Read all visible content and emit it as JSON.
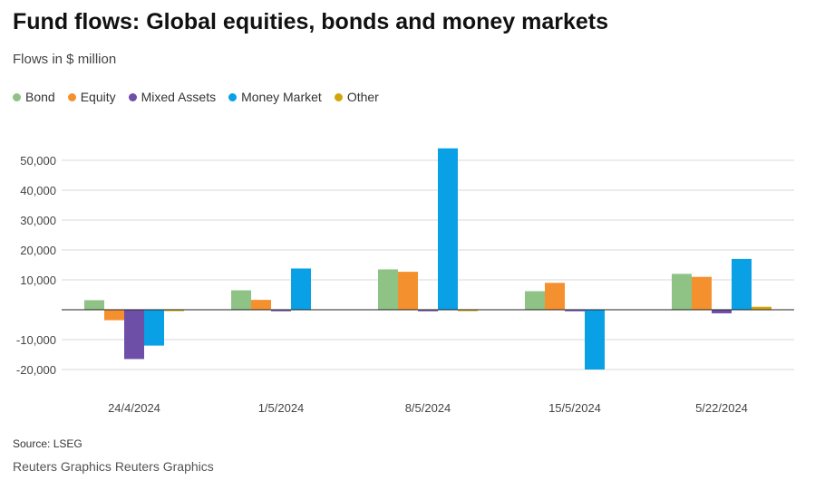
{
  "header": {
    "title": "Fund flows: Global equities, bonds and money markets",
    "subtitle": "Flows in $ million"
  },
  "footer": {
    "source": "Source: LSEG",
    "credit": "Reuters Graphics Reuters Graphics"
  },
  "chart_data": {
    "type": "bar",
    "title": "Fund flows: Global equities, bonds and money markets",
    "subtitle": "Flows in $ million",
    "xlabel": "",
    "ylabel": "",
    "legend_position": "top-left",
    "grid": true,
    "categories": [
      "24/4/2024",
      "1/5/2024",
      "8/5/2024",
      "15/5/2024",
      "5/22/2024"
    ],
    "ylim": [
      -20000,
      55000
    ],
    "yticks": [
      -20000,
      -10000,
      10000,
      20000,
      30000,
      40000,
      50000
    ],
    "ytick_labels": [
      "-20,000",
      "-10,000",
      "10,000",
      "20,000",
      "30,000",
      "40,000",
      "50,000"
    ],
    "series": [
      {
        "name": "Bond",
        "color": "#8fc386",
        "values": [
          3200,
          6500,
          13500,
          6200,
          12000
        ]
      },
      {
        "name": "Equity",
        "color": "#f5902f",
        "values": [
          -3500,
          3300,
          12700,
          9000,
          11000
        ]
      },
      {
        "name": "Mixed Assets",
        "color": "#6e4fa8",
        "values": [
          -16500,
          -500,
          -500,
          -500,
          -1200
        ]
      },
      {
        "name": "Money Market",
        "color": "#0aa0e6",
        "values": [
          -12000,
          13800,
          54000,
          -20000,
          17000
        ]
      },
      {
        "name": "Other",
        "color": "#d4a50a",
        "values": [
          -300,
          0,
          -200,
          0,
          1000
        ]
      }
    ]
  }
}
